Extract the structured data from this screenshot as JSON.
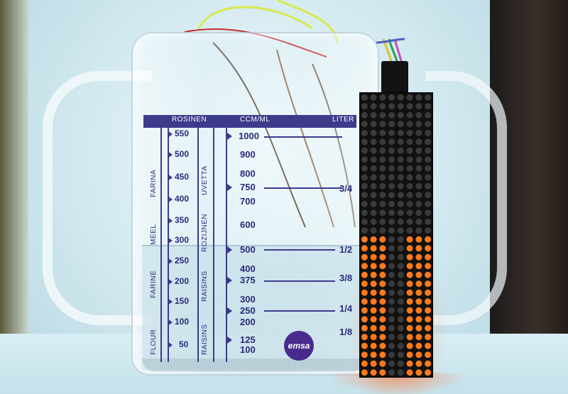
{
  "scale": {
    "header": {
      "rosinen": "ROSINEN",
      "ccm": "CCM/ML",
      "liter": "LITER"
    },
    "rosinen_values": [
      "550",
      "500",
      "450",
      "400",
      "350",
      "300",
      "250",
      "200",
      "150",
      "100",
      "50"
    ],
    "ml_values": [
      "1000",
      "900",
      "800",
      "750",
      "700",
      "600",
      "500",
      "400",
      "375",
      "300",
      "250",
      "200",
      "125",
      "100"
    ],
    "liter_values": [
      "3/4",
      "1/2",
      "3/8",
      "1/4",
      "1/8"
    ],
    "vertical_labels": {
      "farina": "FARINA",
      "meel": "MEEL",
      "farine": "FARINE",
      "flour": "FLOUR",
      "uvetta": "UVETTA",
      "rozijnen": "ROZIJNEN",
      "raisins_a": "RAISINS",
      "raisins_b": "RAISINS"
    },
    "logo": "emsa"
  },
  "led_matrix": {
    "columns": 8,
    "rows": 32,
    "lit_color": "#ff7a1a",
    "unlit_color": "#3a3a3a",
    "level_fraction": 0.5
  },
  "colors": {
    "scale_ink": "#3e3a8c",
    "logo_bg": "#4a2a8c"
  }
}
